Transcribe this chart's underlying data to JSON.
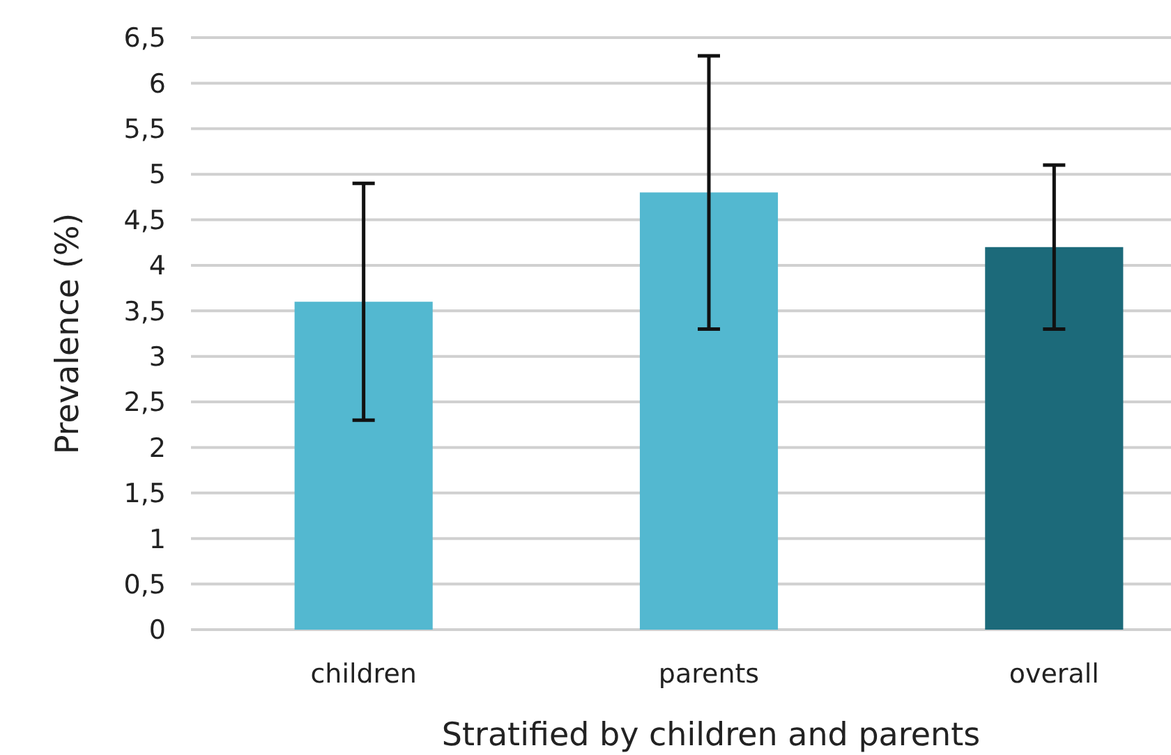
{
  "chart_data": {
    "type": "bar",
    "xlabel": "Stratified by children and parents",
    "ylabel": "Prevalence (%)",
    "categories": [
      "children",
      "parents",
      "overall"
    ],
    "values": [
      3.6,
      4.8,
      4.2
    ],
    "colors": [
      "#53b8d0",
      "#53b8d0",
      "#1c6a7a"
    ],
    "errors": [
      [
        2.3,
        4.9
      ],
      [
        3.3,
        6.3
      ],
      [
        3.3,
        5.1
      ]
    ],
    "ylim": [
      0,
      6.5
    ],
    "yticks": [
      0,
      {
        "value": 0.5,
        "label": "0,5"
      },
      1,
      {
        "value": 1.5,
        "label": "1,5"
      },
      2,
      {
        "value": 2.5,
        "label": "2,5"
      },
      3,
      {
        "value": 3.5,
        "label": "3,5"
      },
      4,
      {
        "value": 4.5,
        "label": "4,5"
      },
      5,
      {
        "value": 5.5,
        "label": "5,5"
      },
      6,
      {
        "value": 6.5,
        "label": "6,5"
      }
    ],
    "grid": "y"
  }
}
